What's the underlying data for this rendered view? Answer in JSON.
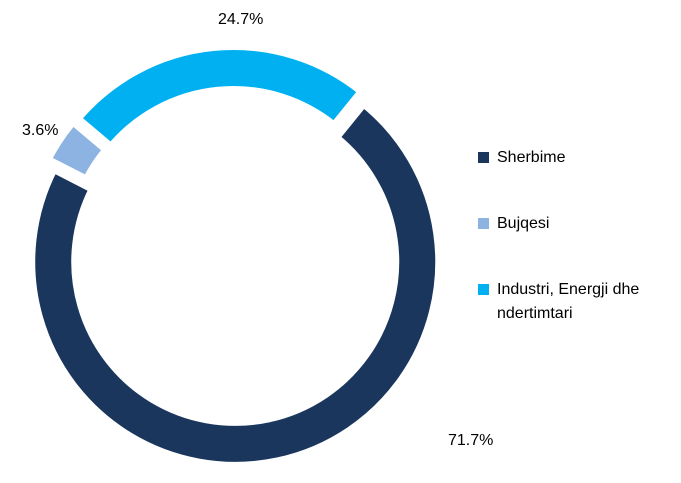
{
  "chart_data": {
    "type": "donut",
    "categories": [
      "Sherbime",
      "Bujqesi",
      "Industri, Energji dhe ndertimtari"
    ],
    "values": [
      71.7,
      3.6,
      24.7
    ],
    "value_labels": [
      "71.7%",
      "3.6%",
      "24.7%"
    ],
    "colors": [
      "#1b365d",
      "#8db3e2",
      "#00b0f0"
    ],
    "legend": "right"
  }
}
